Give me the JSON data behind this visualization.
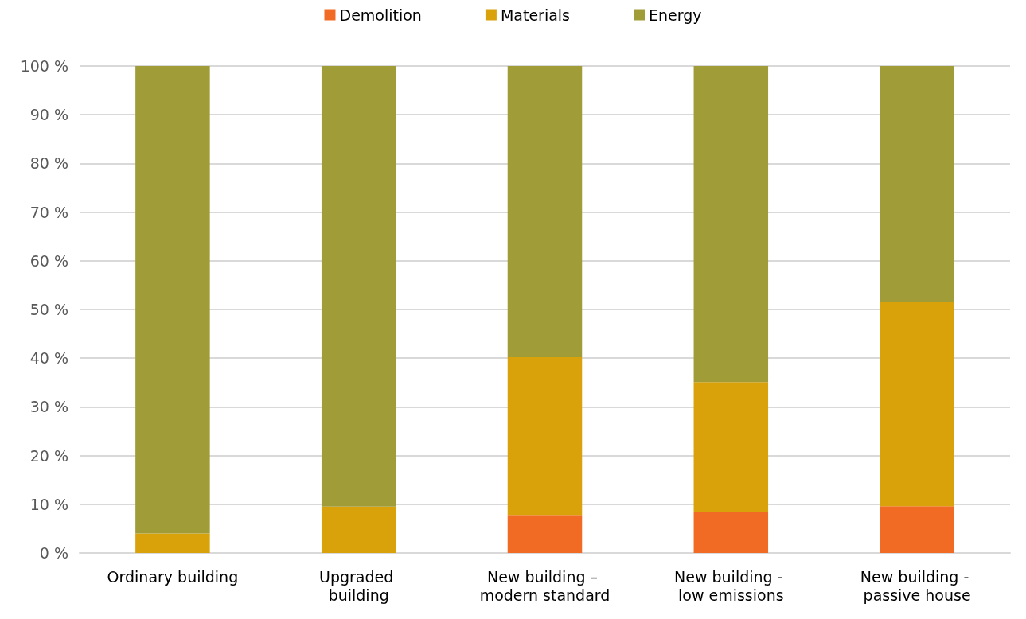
{
  "chart_data": {
    "type": "bar",
    "stacked": true,
    "categories": [
      "Ordinary building",
      "Upgraded building",
      "New building – modern standard",
      "New building - low emissions",
      "New building - passive house"
    ],
    "series": [
      {
        "name": "Demolition",
        "color": "#f26b25",
        "values": [
          0,
          0,
          7.8,
          8.5,
          9.6
        ]
      },
      {
        "name": "Materials",
        "color": "#d9a20b",
        "values": [
          4,
          9.5,
          32.4,
          26.6,
          41.9
        ]
      },
      {
        "name": "Energy",
        "color": "#a09d38",
        "values": [
          96,
          90.5,
          59.8,
          64.9,
          48.5
        ]
      }
    ],
    "ylim": [
      0,
      100
    ],
    "yticks": [
      {
        "value": 0,
        "label": "0 %"
      },
      {
        "value": 10,
        "label": "10 %"
      },
      {
        "value": 20,
        "label": "20 %"
      },
      {
        "value": 30,
        "label": "30 %"
      },
      {
        "value": 40,
        "label": "40 %"
      },
      {
        "value": 50,
        "label": "50 %"
      },
      {
        "value": 60,
        "label": "60 %"
      },
      {
        "value": 70,
        "label": "70 %"
      },
      {
        "value": 80,
        "label": "80 %"
      },
      {
        "value": 90,
        "label": "90 %"
      },
      {
        "value": 100,
        "label": "100 %"
      }
    ],
    "grid": "y",
    "legend": "top"
  }
}
